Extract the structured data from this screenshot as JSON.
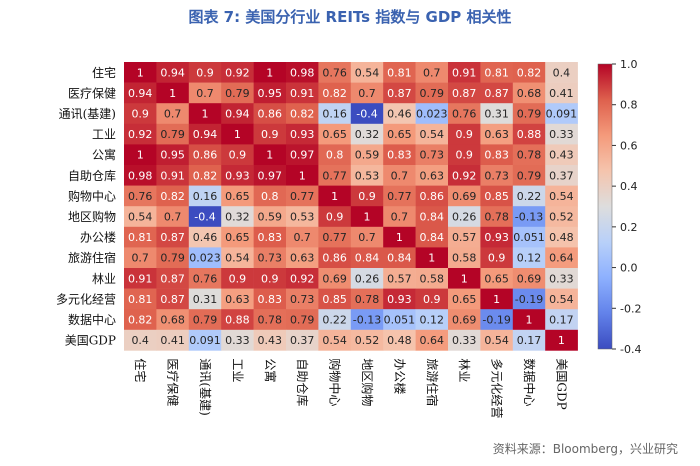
{
  "figure": {
    "title": "图表 7:   美国分行业 REITs 指数与 GDP 相关性",
    "source": "资料来源：Bloomberg，兴业研究"
  },
  "chart_data": {
    "type": "heatmap",
    "title": "图表 7:   美国分行业 REITs 指数与 GDP 相关性",
    "labels": [
      "住宅",
      "医疗保健",
      "通讯(基建)",
      "工业",
      "公寓",
      "自助仓库",
      "购物中心",
      "地区购物",
      "办公楼",
      "旅游住宿",
      "林业",
      "多元化经营",
      "数据中心",
      "美国GDP"
    ],
    "matrix": [
      [
        "1",
        "0.94",
        "0.9",
        "0.92",
        "1",
        "0.98",
        "0.76",
        "0.54",
        "0.81",
        "0.7",
        "0.91",
        "0.81",
        "0.82",
        "0.4"
      ],
      [
        "0.94",
        "1",
        "0.7",
        "0.79",
        "0.95",
        "0.91",
        "0.82",
        "0.7",
        "0.87",
        "0.79",
        "0.87",
        "0.87",
        "0.68",
        "0.41"
      ],
      [
        "0.9",
        "0.7",
        "1",
        "0.94",
        "0.86",
        "0.82",
        "0.16",
        "-0.4",
        "0.46",
        "0.023",
        "0.76",
        "0.31",
        "0.79",
        "0.091"
      ],
      [
        "0.92",
        "0.79",
        "0.94",
        "1",
        "0.9",
        "0.93",
        "0.65",
        "0.32",
        "0.65",
        "0.54",
        "0.9",
        "0.63",
        "0.88",
        "0.33"
      ],
      [
        "1",
        "0.95",
        "0.86",
        "0.9",
        "1",
        "0.97",
        "0.8",
        "0.59",
        "0.83",
        "0.73",
        "0.9",
        "0.83",
        "0.78",
        "0.43"
      ],
      [
        "0.98",
        "0.91",
        "0.82",
        "0.93",
        "0.97",
        "1",
        "0.77",
        "0.53",
        "0.7",
        "0.63",
        "0.92",
        "0.73",
        "0.79",
        "0.37"
      ],
      [
        "0.76",
        "0.82",
        "0.16",
        "0.65",
        "0.8",
        "0.77",
        "1",
        "0.9",
        "0.77",
        "0.86",
        "0.69",
        "0.85",
        "0.22",
        "0.54"
      ],
      [
        "0.54",
        "0.7",
        "-0.4",
        "0.32",
        "0.59",
        "0.53",
        "0.9",
        "1",
        "0.7",
        "0.84",
        "0.26",
        "0.78",
        "-0.13",
        "0.52"
      ],
      [
        "0.81",
        "0.87",
        "0.46",
        "0.65",
        "0.83",
        "0.7",
        "0.77",
        "0.7",
        "1",
        "0.84",
        "0.57",
        "0.93",
        "0.051",
        "0.48"
      ],
      [
        "0.7",
        "0.79",
        "0.023",
        "0.54",
        "0.73",
        "0.63",
        "0.86",
        "0.84",
        "0.84",
        "1",
        "0.58",
        "0.9",
        "0.12",
        "0.64"
      ],
      [
        "0.91",
        "0.87",
        "0.76",
        "0.9",
        "0.9",
        "0.92",
        "0.69",
        "0.26",
        "0.57",
        "0.58",
        "1",
        "0.65",
        "0.69",
        "0.33"
      ],
      [
        "0.81",
        "0.87",
        "0.31",
        "0.63",
        "0.83",
        "0.73",
        "0.85",
        "0.78",
        "0.93",
        "0.9",
        "0.65",
        "1",
        "-0.19",
        "0.54"
      ],
      [
        "0.82",
        "0.68",
        "0.79",
        "0.88",
        "0.78",
        "0.79",
        "0.22",
        "-0.13",
        "0.051",
        "0.12",
        "0.69",
        "-0.19",
        "1",
        "0.17"
      ],
      [
        "0.4",
        "0.41",
        "0.091",
        "0.33",
        "0.43",
        "0.37",
        "0.54",
        "0.52",
        "0.48",
        "0.64",
        "0.33",
        "0.54",
        "0.17",
        "1"
      ]
    ],
    "colorbar": {
      "vmin": -0.4,
      "vmax": 1.0,
      "ticks": [
        "1.0",
        "0.8",
        "0.6",
        "0.4",
        "0.2",
        "0.0",
        "-0.2",
        "-0.4"
      ],
      "colormap": "coolwarm"
    },
    "colors": {
      "low": "#3b4cc0",
      "mid": "#dddddd",
      "high": "#b40426"
    }
  }
}
